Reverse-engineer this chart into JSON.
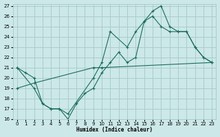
{
  "background_color": "#cce8e8",
  "grid_color": "#aacccc",
  "line_color": "#1a6b5a",
  "xlim": [
    -0.5,
    23.5
  ],
  "ylim": [
    16,
    27.2
  ],
  "xlabel": "Humidex (Indice chaleur)",
  "xticks": [
    0,
    1,
    2,
    3,
    4,
    5,
    6,
    7,
    8,
    9,
    10,
    11,
    12,
    13,
    14,
    15,
    16,
    17,
    18,
    19,
    20,
    21,
    22,
    23
  ],
  "yticks": [
    16,
    17,
    18,
    19,
    20,
    21,
    22,
    23,
    24,
    25,
    26,
    27
  ],
  "line1_x": [
    0,
    1,
    2,
    3,
    4,
    5,
    6,
    7,
    8,
    9,
    10,
    11,
    12,
    13,
    14,
    15,
    16,
    17,
    18,
    19,
    20,
    21,
    22,
    23
  ],
  "line1_y": [
    21,
    20.5,
    20,
    17.5,
    17,
    17,
    16,
    17.5,
    18.5,
    19,
    20.5,
    21.5,
    22.5,
    21.5,
    22,
    25.5,
    26,
    25,
    24.5,
    24.5,
    24.5,
    23,
    22,
    21.5
  ],
  "line2_x": [
    0,
    2,
    3,
    4,
    5,
    6,
    9,
    10,
    11,
    13,
    14,
    15,
    16,
    17,
    18,
    19,
    20,
    21,
    22,
    23
  ],
  "line2_y": [
    21,
    19,
    17.5,
    17,
    17,
    16.5,
    20,
    21.5,
    24.5,
    23,
    24.5,
    25.5,
    26.5,
    27,
    25,
    24.5,
    24.5,
    23,
    22,
    21.5
  ],
  "line3_x": [
    0,
    2,
    9,
    10,
    23
  ],
  "line3_y": [
    19,
    19.5,
    21,
    21,
    21.5
  ],
  "title": ""
}
